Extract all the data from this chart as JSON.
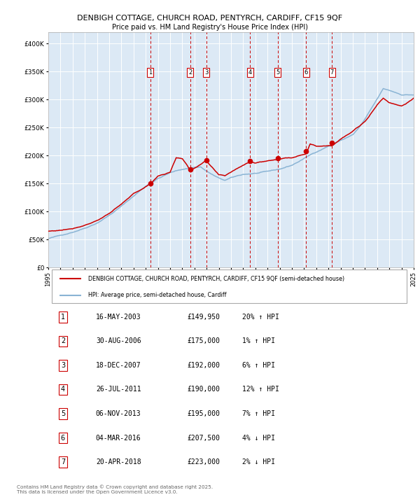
{
  "title_line1": "DENBIGH COTTAGE, CHURCH ROAD, PENTYRCH, CARDIFF, CF15 9QF",
  "title_line2": "Price paid vs. HM Land Registry's House Price Index (HPI)",
  "plot_bg_color": "#dce9f5",
  "red_line_color": "#cc0000",
  "blue_line_color": "#8ab4d4",
  "grid_color": "#ffffff",
  "sale_dates_x": [
    2003.37,
    2006.66,
    2007.96,
    2011.56,
    2013.84,
    2016.17,
    2018.3
  ],
  "sale_prices": [
    149950,
    175000,
    192000,
    190000,
    195000,
    207500,
    223000
  ],
  "sale_labels": [
    "1",
    "2",
    "3",
    "4",
    "5",
    "6",
    "7"
  ],
  "sale_info": [
    {
      "num": "1",
      "date": "16-MAY-2003",
      "price": "£149,950",
      "hpi": "20% ↑ HPI"
    },
    {
      "num": "2",
      "date": "30-AUG-2006",
      "price": "£175,000",
      "hpi": "1% ↑ HPI"
    },
    {
      "num": "3",
      "date": "18-DEC-2007",
      "price": "£192,000",
      "hpi": "6% ↑ HPI"
    },
    {
      "num": "4",
      "date": "26-JUL-2011",
      "price": "£190,000",
      "hpi": "12% ↑ HPI"
    },
    {
      "num": "5",
      "date": "06-NOV-2013",
      "price": "£195,000",
      "hpi": "7% ↑ HPI"
    },
    {
      "num": "6",
      "date": "04-MAR-2016",
      "price": "£207,500",
      "hpi": "4% ↓ HPI"
    },
    {
      "num": "7",
      "date": "20-APR-2018",
      "price": "£223,000",
      "hpi": "2% ↓ HPI"
    }
  ],
  "xmin": 1995,
  "xmax": 2025,
  "ymin": 0,
  "ymax": 420000,
  "yticks": [
    0,
    50000,
    100000,
    150000,
    200000,
    250000,
    300000,
    350000,
    400000
  ],
  "ytick_labels": [
    "£0",
    "£50K",
    "£100K",
    "£150K",
    "£200K",
    "£250K",
    "£300K",
    "£350K",
    "£400K"
  ],
  "xticks": [
    1995,
    1996,
    1997,
    1998,
    1999,
    2000,
    2001,
    2002,
    2003,
    2004,
    2005,
    2006,
    2007,
    2008,
    2009,
    2010,
    2011,
    2012,
    2013,
    2014,
    2015,
    2016,
    2017,
    2018,
    2019,
    2020,
    2021,
    2022,
    2023,
    2024,
    2025
  ],
  "legend_red": "DENBIGH COTTAGE, CHURCH ROAD, PENTYRCH, CARDIFF, CF15 9QF (semi-detached house)",
  "legend_blue": "HPI: Average price, semi-detached house, Cardiff",
  "footnote": "Contains HM Land Registry data © Crown copyright and database right 2025.\nThis data is licensed under the Open Government Licence v3.0."
}
